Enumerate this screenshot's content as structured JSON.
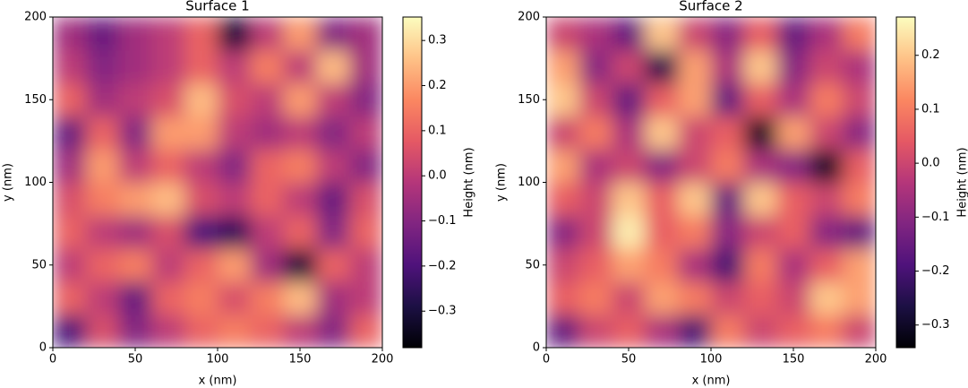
{
  "chart_data": [
    {
      "type": "heatmap",
      "title": "Surface 1",
      "xlabel": "x (nm)",
      "ylabel": "y (nm)",
      "xlim": [
        0,
        200
      ],
      "ylim": [
        0,
        200
      ],
      "xticks": [
        0,
        50,
        100,
        150,
        200
      ],
      "yticks": [
        0,
        50,
        100,
        150,
        200
      ],
      "colorscale": [
        "#000004",
        "#1c1044",
        "#4f127b",
        "#812581",
        "#b5367a",
        "#e55964",
        "#fb8761",
        "#fec287",
        "#fcfdbf"
      ],
      "colorbar": {
        "label": "Height (nm)",
        "lim": [
          -0.381,
          0.352
        ],
        "ticks": [
          {
            "value": -0.3,
            "label": "−0.3"
          },
          {
            "value": -0.2,
            "label": "−0.2"
          },
          {
            "value": -0.1,
            "label": "−0.1"
          },
          {
            "value": 0,
            "label": "0.0"
          },
          0.1,
          0.2,
          0.3
        ]
      },
      "z": [
        [
          -0.2,
          0.05,
          -0.1,
          0.0,
          0.1,
          0.15,
          0.1,
          0.0,
          -0.1,
          0.1
        ],
        [
          0.1,
          0.0,
          -0.15,
          0.1,
          0.15,
          0.05,
          0.15,
          0.25,
          -0.05,
          0.0
        ],
        [
          0.0,
          0.1,
          0.15,
          0.0,
          0.1,
          0.2,
          -0.05,
          -0.3,
          0.1,
          0.0
        ],
        [
          0.1,
          0.0,
          -0.05,
          0.05,
          -0.2,
          -0.25,
          0.0,
          0.1,
          -0.1,
          0.1
        ],
        [
          0.05,
          0.15,
          0.2,
          0.25,
          0.05,
          0.0,
          0.1,
          0.0,
          -0.15,
          0.05
        ],
        [
          -0.05,
          0.2,
          0.0,
          0.1,
          0.0,
          -0.1,
          0.1,
          0.15,
          0.0,
          -0.1
        ],
        [
          -0.15,
          0.1,
          -0.1,
          0.2,
          0.2,
          0.0,
          -0.05,
          0.0,
          -0.1,
          0.0
        ],
        [
          0.1,
          -0.05,
          0.0,
          0.05,
          0.25,
          0.05,
          0.0,
          0.2,
          0.0,
          -0.1
        ],
        [
          0.0,
          -0.1,
          -0.05,
          0.0,
          0.1,
          0.0,
          0.15,
          0.0,
          0.25,
          -0.05
        ],
        [
          -0.05,
          -0.15,
          -0.05,
          0.0,
          0.1,
          -0.3,
          0.0,
          0.2,
          -0.1,
          -0.05
        ]
      ]
    },
    {
      "type": "heatmap",
      "title": "Surface 2",
      "xlabel": "x (nm)",
      "ylabel": "y (nm)",
      "xlim": [
        0,
        200
      ],
      "ylim": [
        0,
        200
      ],
      "xticks": [
        0,
        50,
        100,
        150,
        200
      ],
      "yticks": [
        0,
        50,
        100,
        150,
        200
      ],
      "colorscale": [
        "#000004",
        "#1c1044",
        "#4f127b",
        "#812581",
        "#b5367a",
        "#e55964",
        "#fb8761",
        "#fec287",
        "#fcfdbf"
      ],
      "colorbar": {
        "label": "Height (nm)",
        "lim": [
          -0.342,
          0.271
        ],
        "ticks": [
          {
            "value": -0.3,
            "label": "−0.3"
          },
          {
            "value": -0.2,
            "label": "−0.2"
          },
          {
            "value": -0.1,
            "label": "−0.1"
          },
          {
            "value": 0,
            "label": "0.0"
          },
          0.1,
          0.2
        ]
      },
      "z": [
        [
          -0.15,
          0.0,
          0.05,
          -0.05,
          -0.2,
          0.1,
          0.0,
          0.05,
          0.1,
          0.0
        ],
        [
          0.05,
          0.1,
          0.0,
          0.15,
          0.1,
          0.0,
          0.05,
          0.0,
          0.2,
          0.15
        ],
        [
          0.0,
          0.05,
          0.15,
          0.1,
          -0.05,
          -0.2,
          0.1,
          -0.05,
          0.05,
          0.15
        ],
        [
          -0.1,
          0.0,
          0.25,
          0.05,
          0.1,
          -0.1,
          0.0,
          0.05,
          -0.1,
          -0.15
        ],
        [
          0.05,
          0.0,
          0.2,
          0.05,
          0.2,
          -0.15,
          0.2,
          0.05,
          0.0,
          0.1
        ],
        [
          0.15,
          -0.05,
          0.0,
          -0.1,
          0.0,
          0.1,
          -0.05,
          -0.1,
          -0.3,
          0.05
        ],
        [
          0.0,
          0.1,
          -0.05,
          0.2,
          0.0,
          0.05,
          -0.3,
          0.15,
          0.0,
          -0.1
        ],
        [
          0.2,
          0.0,
          -0.15,
          0.05,
          0.15,
          -0.15,
          0.05,
          -0.05,
          0.1,
          0.0
        ],
        [
          0.15,
          -0.1,
          0.0,
          -0.25,
          0.15,
          -0.05,
          0.2,
          -0.1,
          0.0,
          -0.05
        ],
        [
          0.0,
          -0.05,
          -0.15,
          0.2,
          0.0,
          -0.1,
          0.05,
          -0.15,
          -0.05,
          0.1
        ]
      ]
    }
  ]
}
